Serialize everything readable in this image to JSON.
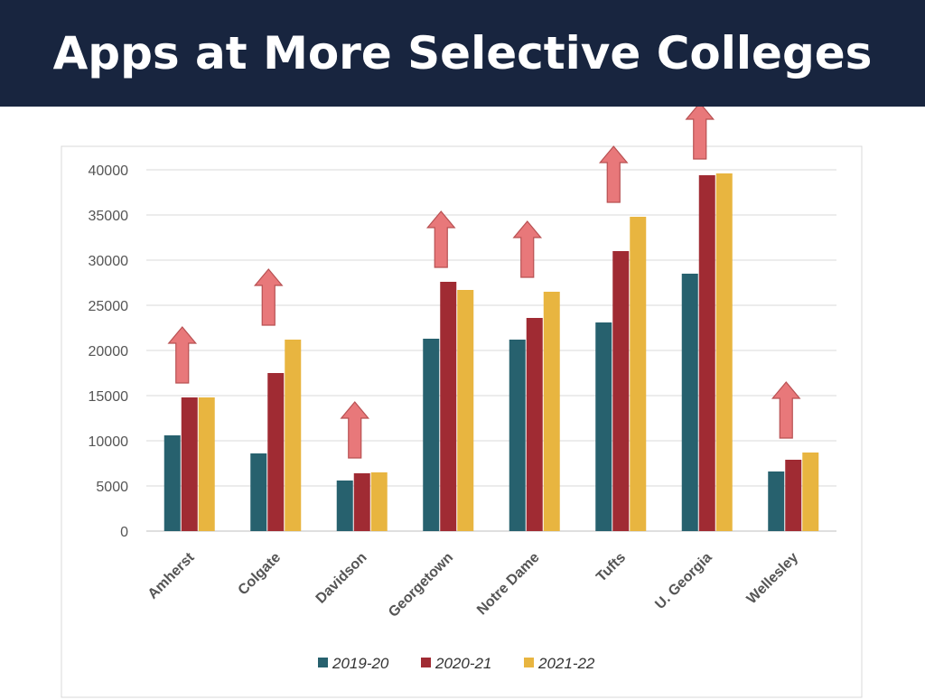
{
  "title": "Apps at More Selective Colleges",
  "chart_data": {
    "type": "bar",
    "title": "",
    "xlabel": "",
    "ylabel": "",
    "ylim": [
      0,
      40000
    ],
    "yticks": [
      0,
      5000,
      10000,
      15000,
      20000,
      25000,
      30000,
      35000,
      40000
    ],
    "grid": true,
    "legend_position": "bottom",
    "categories": [
      "Amherst",
      "Colgate",
      "Davidson",
      "Georgetown",
      "Notre Dame",
      "Tufts",
      "U. Georgia",
      "Wellesley"
    ],
    "series": [
      {
        "name": "2019-20",
        "color": "#27616e",
        "values": [
          10600,
          8600,
          5600,
          21300,
          21200,
          23100,
          28500,
          6600
        ]
      },
      {
        "name": "2020-21",
        "color": "#a02b33",
        "values": [
          14800,
          17500,
          6400,
          27600,
          23600,
          31000,
          39400,
          7900
        ]
      },
      {
        "name": "2021-22",
        "color": "#e8b540",
        "values": [
          14800,
          21200,
          6500,
          26700,
          26500,
          34800,
          39600,
          8700
        ]
      }
    ],
    "annotations": {
      "arrow_icon": "up-arrow-icon",
      "arrow_color": "#e8787a",
      "arrows_on_categories": [
        "Amherst",
        "Colgate",
        "Davidson",
        "Georgetown",
        "Notre Dame",
        "Tufts",
        "U. Georgia",
        "Wellesley"
      ]
    }
  }
}
